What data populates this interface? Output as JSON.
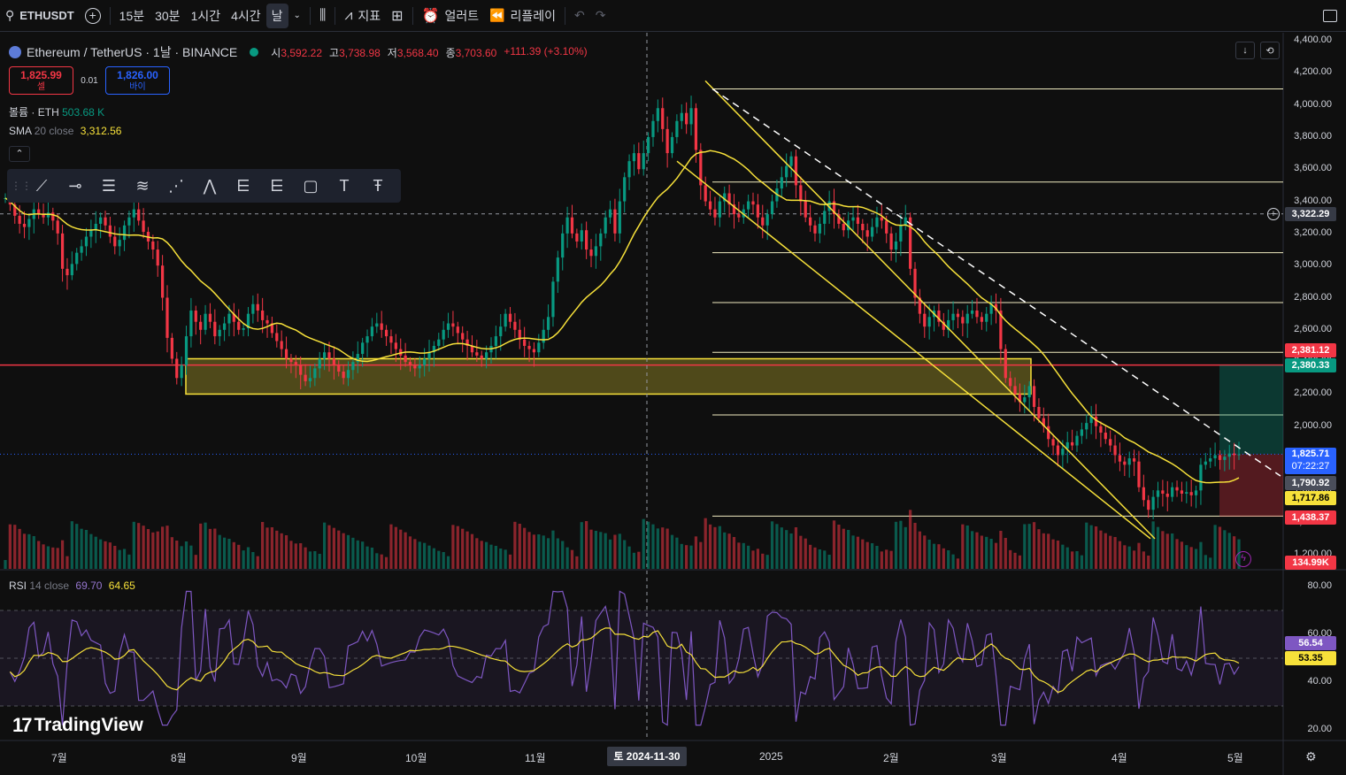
{
  "toolbar": {
    "symbol": "ETHUSDT",
    "intervals": [
      "15분",
      "30분",
      "1시간",
      "4시간",
      "날"
    ],
    "active_interval": "날",
    "indicators_label": "지표",
    "alerts_label": "얼러트",
    "replay_label": "리플레이"
  },
  "legend": {
    "title": "Ethereum / TetherUS · 1날 · BINANCE",
    "o_label": "시",
    "o": "3,592.22",
    "h_label": "고",
    "h": "3,738.98",
    "l_label": "저",
    "l": "3,568.40",
    "c_label": "종",
    "c": "3,703.60",
    "change": "+111.39 (+3.10%)"
  },
  "trade": {
    "sell_price": "1,825.99",
    "sell_label": "셀",
    "spread": "0.01",
    "buy_price": "1,826.00",
    "buy_label": "바이"
  },
  "indicators": {
    "volume_label": "볼륨 · ETH",
    "volume_value": "503.68 K",
    "sma_label": "SMA",
    "sma_params": "20 close",
    "sma_value": "3,312.56",
    "rsi_label": "RSI",
    "rsi_params": "14 close",
    "rsi_value": "69.70",
    "rsi_ma_value": "64.65"
  },
  "price_axis": [
    "4,400.00",
    "4,200.00",
    "4,000.00",
    "3,800.00",
    "3,600.00",
    "3,400.00",
    "3,200.00",
    "3,000.00",
    "2,800.00",
    "2,600.00",
    "2,400.00",
    "2,200.00",
    "2,000.00",
    "1,800.00",
    "1,600.00",
    "1,400.00",
    "1,200.00"
  ],
  "rsi_axis": [
    "80.00",
    "60.00",
    "40.00",
    "20.00"
  ],
  "price_tags": {
    "crosshair": "3,322.29",
    "red_line_upper": "2,381.12",
    "green_upper": "2,380.33",
    "last_price": "1,825.71",
    "countdown": "07:22:27",
    "gray": "1,790.92",
    "sma_tag": "1,717.86",
    "red_lower": "1,438.37",
    "volume_tag": "134.99K",
    "rsi_tag": "56.54",
    "rsi_ma_tag": "53.35"
  },
  "time_axis": [
    "7월",
    "8월",
    "9월",
    "10월",
    "11월",
    "2025",
    "2월",
    "3월",
    "4월",
    "5월"
  ],
  "time_cursor": "토 2024-11-30",
  "brand": "TradingView",
  "drawing_tools": [
    "trend-line",
    "horizontal-ray",
    "parallel-channel",
    "fib-retracement",
    "pitchfork",
    "xabcd-pattern",
    "abcd-pattern",
    "long-position",
    "short-position",
    "rectangle",
    "text",
    "text-note"
  ],
  "colors": {
    "up": "#089981",
    "down": "#f23645",
    "sma": "#f7e13a",
    "rsi": "#7e57c2",
    "zone": "#f7e13a"
  },
  "chart_data": {
    "type": "candlestick",
    "title": "Ethereum / TetherUS · 1날 · BINANCE",
    "ylim": [
      1200,
      4400
    ],
    "rsi_ylim": [
      20,
      80
    ],
    "x_ticks": [
      "7월",
      "8월",
      "9월",
      "10월",
      "11월",
      "2025",
      "2월",
      "3월",
      "4월",
      "5월"
    ],
    "closes": [
      3420,
      3380,
      3310,
      3260,
      3240,
      3290,
      3350,
      3320,
      3300,
      3330,
      3280,
      3200,
      2980,
      2940,
      3010,
      3080,
      3120,
      3180,
      3220,
      3260,
      3300,
      3250,
      3180,
      3120,
      3160,
      3250,
      3300,
      3350,
      3280,
      3210,
      3150,
      3100,
      3000,
      2800,
      2550,
      2420,
      2300,
      2380,
      2560,
      2720,
      2650,
      2600,
      2700,
      2650,
      2560,
      2600,
      2640,
      2700,
      2650,
      2600,
      2610,
      2700,
      2760,
      2720,
      2660,
      2640,
      2580,
      2530,
      2480,
      2420,
      2400,
      2380,
      2320,
      2280,
      2300,
      2360,
      2420,
      2460,
      2420,
      2380,
      2340,
      2300,
      2350,
      2400,
      2450,
      2520,
      2560,
      2620,
      2640,
      2600,
      2560,
      2520,
      2480,
      2440,
      2400,
      2380,
      2360,
      2380,
      2420,
      2460,
      2500,
      2540,
      2600,
      2640,
      2620,
      2580,
      2540,
      2500,
      2460,
      2440,
      2420,
      2460,
      2500,
      2560,
      2620,
      2700,
      2650,
      2600,
      2540,
      2500,
      2480,
      2460,
      2520,
      2600,
      2680,
      2900,
      3050,
      3200,
      3300,
      3200,
      3150,
      3220,
      3100,
      3060,
      3120,
      3200,
      3300,
      3350,
      3200,
      3400,
      3550,
      3650,
      3700,
      3600,
      3700,
      3800,
      3900,
      3980,
      3850,
      3700,
      3800,
      3900,
      3950,
      3880,
      3980,
      3720,
      3500,
      3400,
      3350,
      3300,
      3400,
      3450,
      3380,
      3320,
      3300,
      3350,
      3400,
      3380,
      3300,
      3250,
      3320,
      3400,
      3480,
      3550,
      3620,
      3680,
      3500,
      3400,
      3300,
      3250,
      3200,
      3260,
      3340,
      3400,
      3320,
      3260,
      3220,
      3280,
      3300,
      3260,
      3220,
      3180,
      3240,
      3300,
      3280,
      3200,
      3100,
      3150,
      3250,
      3300,
      2980,
      2800,
      2700,
      2620,
      2680,
      2720,
      2650,
      2600,
      2660,
      2700,
      2680,
      2640,
      2700,
      2720,
      2680,
      2650,
      2700,
      2760,
      2720,
      2480,
      2300,
      2250,
      2200,
      2150,
      2180,
      2250,
      2120,
      2050,
      2000,
      1920,
      1880,
      1820,
      1860,
      1900,
      1880,
      1940,
      1980,
      2020,
      2060,
      2000,
      1960,
      1920,
      1880,
      1820,
      1780,
      1760,
      1800,
      1780,
      1620,
      1540,
      1480,
      1560,
      1600,
      1580,
      1560,
      1620,
      1600,
      1580,
      1590,
      1570,
      1600,
      1760,
      1780,
      1800,
      1820,
      1790,
      1810,
      1830,
      1820,
      1825
    ]
  }
}
